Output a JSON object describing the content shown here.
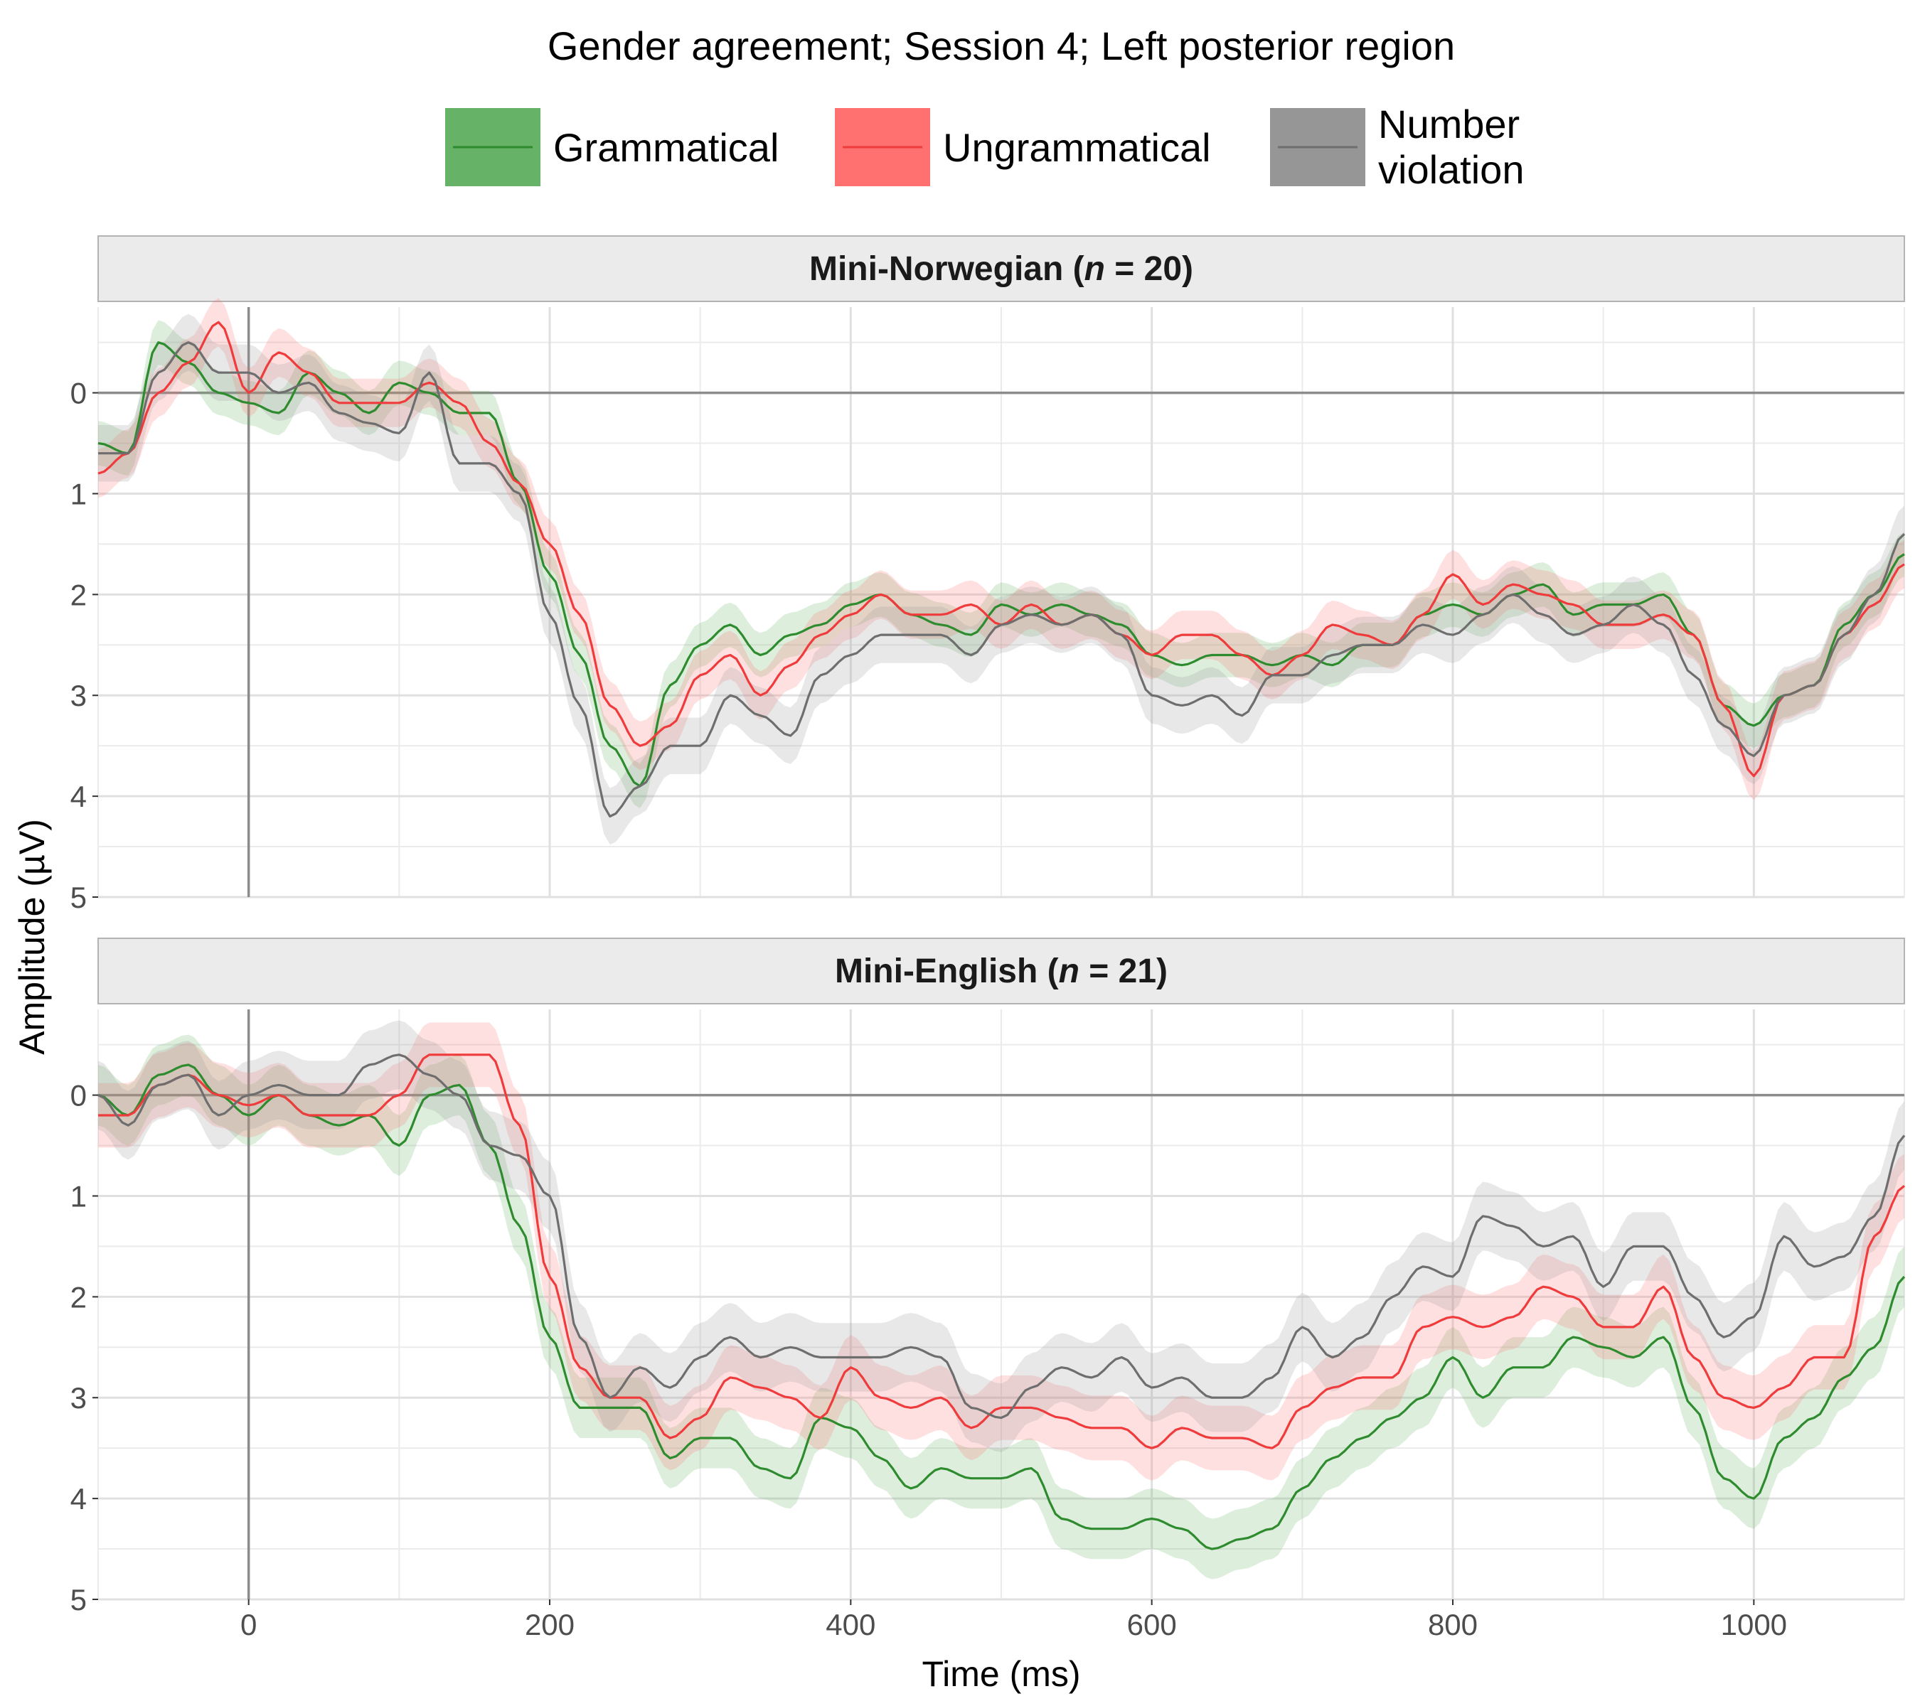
{
  "chart_data": {
    "type": "line",
    "title": "Gender agreement; Session 4; Left posterior region",
    "xlabel": "Time (ms)",
    "ylabel": "Amplitude (µV)",
    "xlim": [
      -100,
      1100
    ],
    "ylim": [
      -0.85,
      5
    ],
    "y_axis_reversed": true,
    "x_ticks": [
      0,
      200,
      400,
      600,
      800,
      1000
    ],
    "y_ticks": [
      0,
      1,
      2,
      3,
      4,
      5
    ],
    "grid": true,
    "ribbons": true,
    "legend": {
      "position": "top",
      "entries": [
        {
          "label": "Grammatical",
          "color": "#2e8b2e",
          "fill": "#66b266"
        },
        {
          "label": "Ungrammatical",
          "color": "#ef3b3b",
          "fill": "#ff7070"
        },
        {
          "label_lines": [
            "Number",
            "violation"
          ],
          "color": "#6e6e6e",
          "fill": "#969696"
        }
      ]
    },
    "panels": [
      {
        "strip_prefix": "Mini-Norwegian (",
        "strip_n": "n",
        "strip_suffix": " = 20)",
        "series": [
          {
            "name": "Grammatical",
            "color": "#2e8b2e",
            "fill": "#66b266",
            "band": 0.22,
            "x": [
              -100,
              -80,
              -60,
              -40,
              -20,
              0,
              20,
              40,
              60,
              80,
              100,
              120,
              140,
              160,
              180,
              200,
              220,
              240,
              260,
              280,
              300,
              320,
              340,
              360,
              380,
              400,
              420,
              440,
              460,
              480,
              500,
              520,
              540,
              560,
              580,
              600,
              620,
              640,
              660,
              680,
              700,
              720,
              740,
              760,
              780,
              800,
              820,
              840,
              860,
              880,
              900,
              920,
              940,
              960,
              980,
              1000,
              1020,
              1040,
              1060,
              1080,
              1100
            ],
            "y": [
              0.5,
              0.6,
              -0.5,
              -0.3,
              0.0,
              0.1,
              0.2,
              -0.2,
              0.0,
              0.2,
              -0.1,
              0.0,
              0.2,
              0.2,
              0.9,
              1.8,
              2.6,
              3.5,
              3.9,
              2.9,
              2.5,
              2.3,
              2.6,
              2.4,
              2.3,
              2.1,
              2.0,
              2.2,
              2.3,
              2.4,
              2.1,
              2.2,
              2.1,
              2.2,
              2.3,
              2.6,
              2.7,
              2.6,
              2.6,
              2.7,
              2.6,
              2.7,
              2.5,
              2.5,
              2.2,
              2.1,
              2.2,
              2.0,
              1.9,
              2.2,
              2.1,
              2.1,
              2.0,
              2.4,
              3.1,
              3.3,
              3.0,
              2.9,
              2.3,
              2.0,
              1.6
            ]
          },
          {
            "name": "Ungrammatical",
            "color": "#ef3b3b",
            "fill": "#ff7070",
            "band": 0.24,
            "x": [
              -100,
              -80,
              -60,
              -40,
              -20,
              0,
              20,
              40,
              60,
              80,
              100,
              120,
              140,
              160,
              180,
              200,
              220,
              240,
              260,
              280,
              300,
              320,
              340,
              360,
              380,
              400,
              420,
              440,
              460,
              480,
              500,
              520,
              540,
              560,
              580,
              600,
              620,
              640,
              660,
              680,
              700,
              720,
              740,
              760,
              780,
              800,
              820,
              840,
              860,
              880,
              900,
              920,
              940,
              960,
              980,
              1000,
              1020,
              1040,
              1060,
              1080,
              1100
            ],
            "y": [
              0.8,
              0.6,
              0.0,
              -0.3,
              -0.7,
              0.0,
              -0.4,
              -0.2,
              0.1,
              0.1,
              0.1,
              -0.1,
              0.1,
              0.5,
              0.9,
              1.5,
              2.2,
              3.1,
              3.5,
              3.3,
              2.8,
              2.6,
              3.0,
              2.7,
              2.4,
              2.2,
              2.0,
              2.2,
              2.2,
              2.1,
              2.3,
              2.1,
              2.3,
              2.2,
              2.4,
              2.6,
              2.4,
              2.4,
              2.6,
              2.8,
              2.6,
              2.3,
              2.4,
              2.5,
              2.2,
              1.8,
              2.1,
              1.9,
              2.0,
              2.1,
              2.3,
              2.3,
              2.2,
              2.4,
              3.1,
              3.8,
              3.0,
              2.9,
              2.4,
              2.1,
              1.7
            ]
          },
          {
            "name": "Number violation",
            "color": "#6e6e6e",
            "fill": "#969696",
            "band": 0.28,
            "x": [
              -100,
              -80,
              -60,
              -40,
              -20,
              0,
              20,
              40,
              60,
              80,
              100,
              120,
              140,
              160,
              180,
              200,
              220,
              240,
              260,
              280,
              300,
              320,
              340,
              360,
              380,
              400,
              420,
              440,
              460,
              480,
              500,
              520,
              540,
              560,
              580,
              600,
              620,
              640,
              660,
              680,
              700,
              720,
              740,
              760,
              780,
              800,
              820,
              840,
              860,
              880,
              900,
              920,
              940,
              960,
              980,
              1000,
              1020,
              1040,
              1060,
              1080,
              1100
            ],
            "y": [
              0.6,
              0.6,
              -0.2,
              -0.5,
              -0.2,
              -0.2,
              0.0,
              -0.1,
              0.2,
              0.3,
              0.4,
              -0.2,
              0.7,
              0.7,
              1.0,
              2.2,
              3.1,
              4.2,
              3.9,
              3.5,
              3.5,
              3.0,
              3.2,
              3.4,
              2.8,
              2.6,
              2.4,
              2.4,
              2.4,
              2.6,
              2.3,
              2.2,
              2.3,
              2.2,
              2.4,
              3.0,
              3.1,
              3.0,
              3.2,
              2.8,
              2.8,
              2.6,
              2.5,
              2.5,
              2.3,
              2.4,
              2.2,
              2.0,
              2.2,
              2.4,
              2.3,
              2.1,
              2.3,
              2.8,
              3.3,
              3.6,
              3.0,
              2.9,
              2.4,
              2.0,
              1.4
            ]
          }
        ]
      },
      {
        "strip_prefix": "Mini-English (",
        "strip_n": "n",
        "strip_suffix": " = 21)",
        "series": [
          {
            "name": "Grammatical",
            "color": "#2e8b2e",
            "fill": "#66b266",
            "band": 0.3,
            "x": [
              -100,
              -80,
              -60,
              -40,
              -20,
              0,
              20,
              40,
              60,
              80,
              100,
              120,
              140,
              160,
              180,
              200,
              220,
              240,
              260,
              280,
              300,
              320,
              340,
              360,
              380,
              400,
              420,
              440,
              460,
              480,
              500,
              520,
              540,
              560,
              580,
              600,
              620,
              640,
              660,
              680,
              700,
              720,
              740,
              760,
              780,
              800,
              820,
              840,
              860,
              880,
              900,
              920,
              940,
              960,
              980,
              1000,
              1020,
              1040,
              1060,
              1080,
              1100
            ],
            "y": [
              0.0,
              0.2,
              -0.2,
              -0.3,
              0.0,
              0.2,
              0.0,
              0.2,
              0.3,
              0.2,
              0.5,
              0.0,
              -0.1,
              0.5,
              1.3,
              2.4,
              3.1,
              3.1,
              3.1,
              3.6,
              3.4,
              3.4,
              3.7,
              3.8,
              3.2,
              3.3,
              3.6,
              3.9,
              3.7,
              3.8,
              3.8,
              3.7,
              4.2,
              4.3,
              4.3,
              4.2,
              4.3,
              4.5,
              4.4,
              4.3,
              3.9,
              3.6,
              3.4,
              3.2,
              3.0,
              2.6,
              3.0,
              2.7,
              2.7,
              2.4,
              2.5,
              2.6,
              2.4,
              3.1,
              3.8,
              4.0,
              3.4,
              3.2,
              2.8,
              2.5,
              1.8
            ]
          },
          {
            "name": "Ungrammatical",
            "color": "#ef3b3b",
            "fill": "#ff7070",
            "band": 0.32,
            "x": [
              -100,
              -80,
              -60,
              -40,
              -20,
              0,
              20,
              40,
              60,
              80,
              100,
              120,
              140,
              160,
              180,
              200,
              220,
              240,
              260,
              280,
              300,
              320,
              340,
              360,
              380,
              400,
              420,
              440,
              460,
              480,
              500,
              520,
              540,
              560,
              580,
              600,
              620,
              640,
              660,
              680,
              700,
              720,
              740,
              760,
              780,
              800,
              820,
              840,
              860,
              880,
              900,
              920,
              940,
              960,
              980,
              1000,
              1020,
              1040,
              1060,
              1080,
              1100
            ],
            "y": [
              0.2,
              0.2,
              -0.1,
              -0.2,
              0.0,
              0.1,
              0.0,
              0.2,
              0.2,
              0.2,
              0.0,
              -0.4,
              -0.4,
              -0.4,
              0.3,
              1.8,
              2.7,
              3.0,
              3.0,
              3.4,
              3.2,
              2.8,
              2.9,
              3.0,
              3.2,
              2.7,
              3.0,
              3.1,
              3.0,
              3.3,
              3.1,
              3.1,
              3.2,
              3.3,
              3.3,
              3.5,
              3.3,
              3.4,
              3.4,
              3.5,
              3.1,
              2.9,
              2.8,
              2.8,
              2.3,
              2.2,
              2.3,
              2.2,
              1.9,
              2.0,
              2.3,
              2.3,
              1.9,
              2.6,
              3.0,
              3.1,
              2.9,
              2.6,
              2.6,
              1.4,
              0.9
            ]
          },
          {
            "name": "Number violation",
            "color": "#6e6e6e",
            "fill": "#969696",
            "band": 0.34,
            "x": [
              -100,
              -80,
              -60,
              -40,
              -20,
              0,
              20,
              40,
              60,
              80,
              100,
              120,
              140,
              160,
              180,
              200,
              220,
              240,
              260,
              280,
              300,
              320,
              340,
              360,
              380,
              400,
              420,
              440,
              460,
              480,
              500,
              520,
              540,
              560,
              580,
              600,
              620,
              640,
              660,
              680,
              700,
              720,
              740,
              760,
              780,
              800,
              820,
              840,
              860,
              880,
              900,
              920,
              940,
              960,
              980,
              1000,
              1020,
              1040,
              1060,
              1080,
              1100
            ],
            "y": [
              0.0,
              0.3,
              -0.1,
              -0.2,
              0.2,
              0.0,
              -0.1,
              0.0,
              0.0,
              -0.3,
              -0.4,
              -0.2,
              0.0,
              0.5,
              0.6,
              1.0,
              2.4,
              3.0,
              2.7,
              2.9,
              2.6,
              2.4,
              2.6,
              2.5,
              2.6,
              2.6,
              2.6,
              2.5,
              2.6,
              3.1,
              3.2,
              2.9,
              2.7,
              2.8,
              2.6,
              2.9,
              2.8,
              3.0,
              3.0,
              2.8,
              2.3,
              2.6,
              2.4,
              2.0,
              1.7,
              1.8,
              1.2,
              1.3,
              1.5,
              1.4,
              1.9,
              1.5,
              1.5,
              2.0,
              2.4,
              2.2,
              1.4,
              1.7,
              1.6,
              1.2,
              0.4
            ]
          }
        ]
      }
    ]
  }
}
